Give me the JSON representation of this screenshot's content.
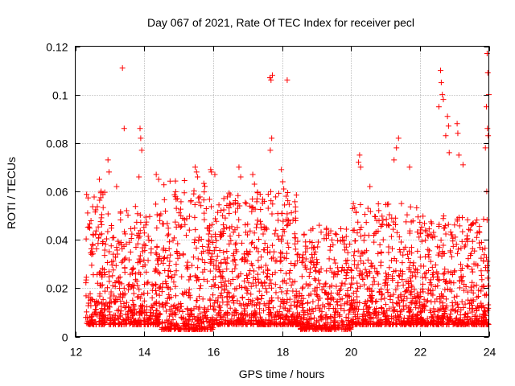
{
  "chart_data": {
    "type": "scatter",
    "title": "Day 067 of 2021, Rate Of TEC Index for receiver pecl",
    "xlabel": "GPS time / hours",
    "ylabel": "ROTI / TECUs",
    "xlim": [
      12,
      24
    ],
    "ylim": [
      0,
      0.12
    ],
    "x_ticks": [
      12,
      14,
      16,
      18,
      20,
      22,
      24
    ],
    "x_tick_labels": [
      "12",
      "14",
      "16",
      "18",
      "20",
      "22",
      "24"
    ],
    "y_ticks": [
      0,
      0.02,
      0.04,
      0.06,
      0.08,
      0.1,
      0.12
    ],
    "y_tick_labels": [
      "0",
      "0.02",
      "0.04",
      "0.06",
      "0.08",
      "0.1",
      "0.12"
    ],
    "grid": true,
    "marker": "+",
    "color": "#ff0000",
    "series": [
      {
        "name": "ROTI",
        "x": [
          13.37,
          13.42,
          13.88,
          13.9,
          13.93,
          13.85,
          12.95,
          12.98,
          13.2,
          12.7,
          12.75,
          14.35,
          14.42,
          15.48,
          15.52,
          15.55,
          15.93,
          15.95,
          16.05,
          16.75,
          16.8,
          17.15,
          17.2,
          17.65,
          17.68,
          17.72,
          17.66,
          17.7,
          17.98,
          18.02,
          18.05,
          18.15,
          18.12,
          19.08,
          20.22,
          20.25,
          20.28,
          20.55,
          21.25,
          21.32,
          21.38,
          21.7,
          22.6,
          22.62,
          22.65,
          22.68,
          22.55,
          22.8,
          22.83,
          22.75,
          22.85,
          23.08,
          23.1,
          23.13,
          23.25,
          23.95,
          23.97,
          24.0,
          23.93,
          23.96,
          23.98,
          23.9,
          23.94
        ],
        "y": [
          0.111,
          0.086,
          0.086,
          0.082,
          0.077,
          0.066,
          0.073,
          0.068,
          0.062,
          0.065,
          0.06,
          0.067,
          0.065,
          0.07,
          0.068,
          0.066,
          0.069,
          0.068,
          0.067,
          0.07,
          0.066,
          0.067,
          0.063,
          0.107,
          0.106,
          0.108,
          0.077,
          0.082,
          0.069,
          0.064,
          0.061,
          0.106,
          0.058,
          0.046,
          0.072,
          0.075,
          0.07,
          0.062,
          0.073,
          0.078,
          0.082,
          0.07,
          0.11,
          0.105,
          0.1,
          0.098,
          0.095,
          0.091,
          0.087,
          0.083,
          0.076,
          0.088,
          0.084,
          0.075,
          0.071,
          0.117,
          0.109,
          0.1,
          0.095,
          0.086,
          0.083,
          0.078,
          0.06
        ],
        "dense_bands": [
          {
            "x": [
              12.3,
              13.0
            ],
            "y": [
              0.005,
              0.06
            ]
          },
          {
            "x": [
              13.0,
              14.5
            ],
            "y": [
              0.005,
              0.055
            ]
          },
          {
            "x": [
              14.5,
              16.0
            ],
            "y": [
              0.003,
              0.065
            ]
          },
          {
            "x": [
              16.0,
              18.5
            ],
            "y": [
              0.005,
              0.06
            ]
          },
          {
            "x": [
              18.5,
              20.0
            ],
            "y": [
              0.003,
              0.045
            ]
          },
          {
            "x": [
              20.0,
              22.0
            ],
            "y": [
              0.005,
              0.055
            ]
          },
          {
            "x": [
              22.0,
              24.0
            ],
            "y": [
              0.005,
              0.05
            ]
          }
        ]
      }
    ]
  }
}
